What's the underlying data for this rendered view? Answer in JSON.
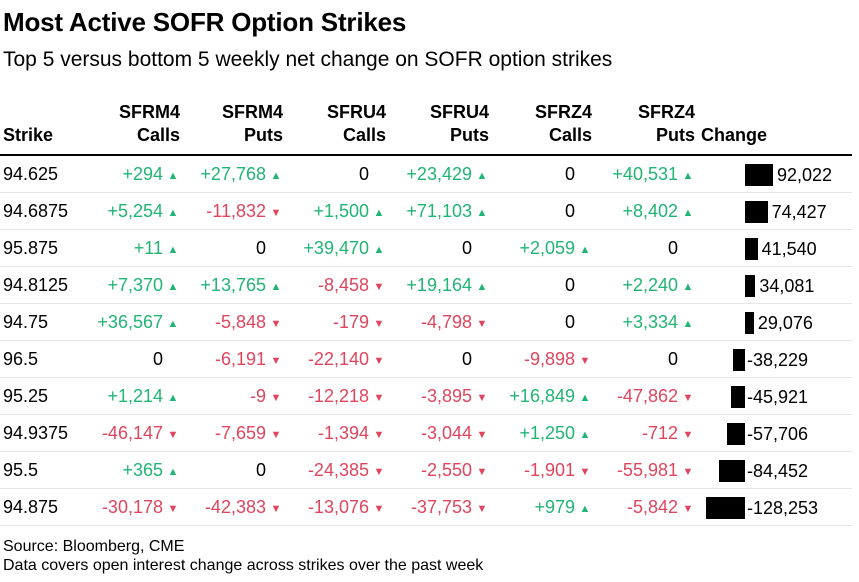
{
  "title": "Most Active SOFR Option Strikes",
  "subtitle": "Top 5 versus bottom 5 weekly net change on SOFR option strikes",
  "source": "Source: Bloomberg, CME",
  "note": "Data covers open interest change across strikes over the past week",
  "colors": {
    "positive": "#21b574",
    "negative": "#e0455d",
    "bar": "#000000"
  },
  "chart_data": {
    "type": "table",
    "columns": [
      {
        "key": "strike",
        "line1": "",
        "line2": "Strike"
      },
      {
        "key": "sfrm4_calls",
        "line1": "SFRM4",
        "line2": "Calls"
      },
      {
        "key": "sfrm4_puts",
        "line1": "SFRM4",
        "line2": "Puts"
      },
      {
        "key": "sfru4_calls",
        "line1": "SFRU4",
        "line2": "Calls"
      },
      {
        "key": "sfru4_puts",
        "line1": "SFRU4",
        "line2": "Puts"
      },
      {
        "key": "sfrz4_calls",
        "line1": "SFRZ4",
        "line2": "Calls"
      },
      {
        "key": "sfrz4_puts",
        "line1": "SFRZ4",
        "line2": "Puts"
      },
      {
        "key": "change",
        "line1": "",
        "line2": "Change"
      }
    ],
    "rows": [
      {
        "strike": "94.625",
        "values": [
          "+294",
          "+27,768",
          "0",
          "+23,429",
          "0",
          "+40,531"
        ],
        "change": 92022,
        "change_label": "92,022"
      },
      {
        "strike": "94.6875",
        "values": [
          "+5,254",
          "-11,832",
          "+1,500",
          "+71,103",
          "0",
          "+8,402"
        ],
        "change": 74427,
        "change_label": "74,427"
      },
      {
        "strike": "95.875",
        "values": [
          "+11",
          "0",
          "+39,470",
          "0",
          "+2,059",
          "0"
        ],
        "change": 41540,
        "change_label": "41,540"
      },
      {
        "strike": "94.8125",
        "values": [
          "+7,370",
          "+13,765",
          "-8,458",
          "+19,164",
          "0",
          "+2,240"
        ],
        "change": 34081,
        "change_label": "34,081"
      },
      {
        "strike": "94.75",
        "values": [
          "+36,567",
          "-5,848",
          "-179",
          "-4,798",
          "0",
          "+3,334"
        ],
        "change": 29076,
        "change_label": "29,076"
      },
      {
        "strike": "96.5",
        "values": [
          "0",
          "-6,191",
          "-22,140",
          "0",
          "-9,898",
          "0"
        ],
        "change": -38229,
        "change_label": "-38,229"
      },
      {
        "strike": "95.25",
        "values": [
          "+1,214",
          "-9",
          "-12,218",
          "-3,895",
          "+16,849",
          "-47,862"
        ],
        "change": -45921,
        "change_label": "-45,921"
      },
      {
        "strike": "94.9375",
        "values": [
          "-46,147",
          "-7,659",
          "-1,394",
          "-3,044",
          "+1,250",
          "-712"
        ],
        "change": -57706,
        "change_label": "-57,706"
      },
      {
        "strike": "95.5",
        "values": [
          "+365",
          "0",
          "-24,385",
          "-2,550",
          "-1,901",
          "-55,981"
        ],
        "change": -84452,
        "change_label": "-84,452"
      },
      {
        "strike": "94.875",
        "values": [
          "-30,178",
          "-42,383",
          "-13,076",
          "-37,753",
          "+979",
          "-5,842"
        ],
        "change": -128253,
        "change_label": "-128,253"
      }
    ]
  }
}
